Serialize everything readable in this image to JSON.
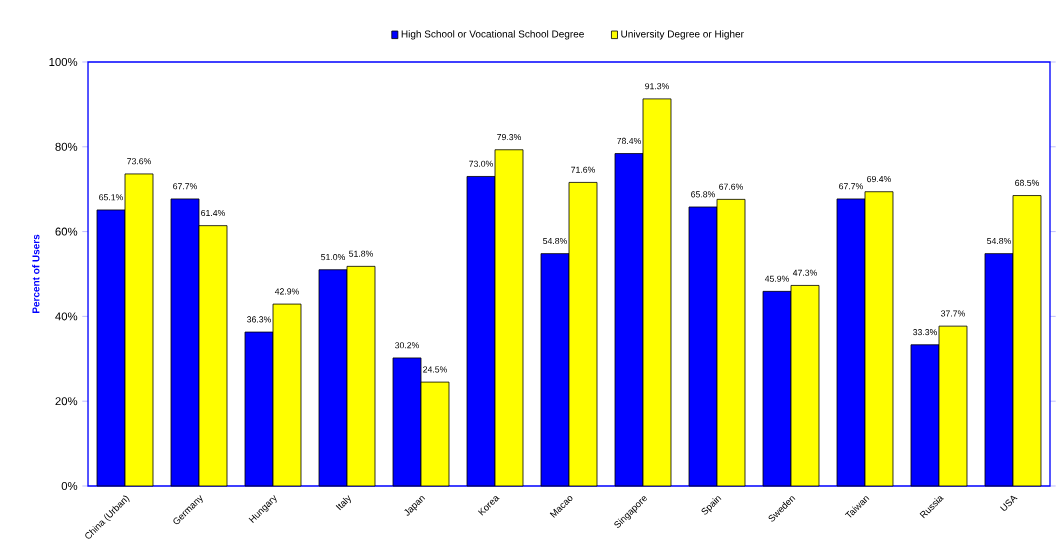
{
  "chart_data": {
    "type": "bar",
    "ylabel": "Percent of Users",
    "legend": "top",
    "categories": [
      "China (Urban)",
      "Germany",
      "Hungary",
      "Italy",
      "Japan",
      "Korea",
      "Macao",
      "Singapore",
      "Spain",
      "Sweden",
      "Taiwan",
      "Russia",
      "USA"
    ],
    "ylim": [
      0,
      100
    ],
    "yticks": [
      {
        "value": 0,
        "label": "0%"
      },
      {
        "value": 20,
        "label": "20%"
      },
      {
        "value": 40,
        "label": "40%"
      },
      {
        "value": 60,
        "label": "60%"
      },
      {
        "value": 80,
        "label": "80%"
      },
      {
        "value": 100,
        "label": "100%"
      }
    ],
    "grid": false,
    "series": [
      {
        "name": "High School or Vocational School Degree",
        "color": "#0000ff",
        "values": [
          65.1,
          67.7,
          36.3,
          51.0,
          30.2,
          73.0,
          54.8,
          78.4,
          65.8,
          45.9,
          67.7,
          33.3,
          54.8
        ],
        "value_labels": [
          "65.1%",
          "67.7%",
          "36.3%",
          "51.0%",
          "30.2%",
          "73.0%",
          "54.8%",
          "78.4%",
          "65.8%",
          "45.9%",
          "67.7%",
          "33.3%",
          "54.8%"
        ]
      },
      {
        "name": "University Degree or Higher",
        "color": "#ffff00",
        "values": [
          73.6,
          61.4,
          42.9,
          51.8,
          24.5,
          79.3,
          71.6,
          91.3,
          67.6,
          47.3,
          69.4,
          37.7,
          68.5
        ],
        "value_labels": [
          "73.6%",
          "61.4%",
          "42.9%",
          "51.8%",
          "24.5%",
          "79.3%",
          "71.6%",
          "91.3%",
          "67.6%",
          "47.3%",
          "69.4%",
          "37.7%",
          "68.5%"
        ]
      }
    ]
  }
}
